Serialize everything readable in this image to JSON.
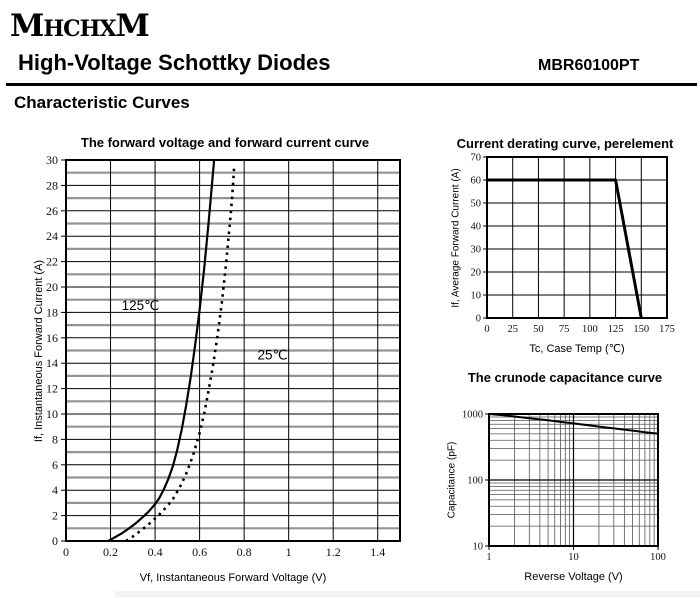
{
  "header": {
    "logo": "MHCHXM",
    "title": "High-Voltage Schottky Diodes",
    "part_number": "MBR60100PT",
    "section_title": "Characteristic Curves"
  },
  "colors": {
    "text": "#000000",
    "line": "#000000",
    "grid_major": "#000000",
    "grid_minor": "#949494",
    "log_grid_minor": "#555555",
    "footer_bar": "#f3f3f3"
  },
  "chart_data": [
    {
      "id": "forward-voltage",
      "type": "line",
      "title": "The forward voltage and forward current curve",
      "xlabel": "Vf, Instantaneous Forward Voltage (V)",
      "ylabel": "If, Instantaneous Forward Current (A)",
      "xlim": [
        0,
        1.5
      ],
      "ylim": [
        0,
        30
      ],
      "x_scale": "linear",
      "y_scale": "linear",
      "grid": "on",
      "x_ticks": [
        0,
        0.2,
        0.4,
        0.6,
        0.8,
        1,
        1.2,
        1.4
      ],
      "x_tick_labels": [
        "0",
        "0.2",
        "0.4",
        "0.6",
        "0.8",
        "1",
        "1.2",
        "1.4"
      ],
      "y_ticks": [
        0,
        2,
        4,
        6,
        8,
        10,
        12,
        14,
        16,
        18,
        20,
        22,
        24,
        26,
        28,
        30
      ],
      "y_grid_step": 1,
      "series": [
        {
          "name": "125℃",
          "style": "solid",
          "label_at": [
            0.25,
            18.2
          ],
          "points": [
            [
              0.19,
              0
            ],
            [
              0.22,
              0.3
            ],
            [
              0.25,
              0.6
            ],
            [
              0.28,
              0.95
            ],
            [
              0.31,
              1.35
            ],
            [
              0.34,
              1.8
            ],
            [
              0.37,
              2.3
            ],
            [
              0.4,
              2.9
            ],
            [
              0.42,
              3.4
            ],
            [
              0.44,
              4.1
            ],
            [
              0.46,
              4.9
            ],
            [
              0.48,
              5.9
            ],
            [
              0.5,
              7.2
            ],
            [
              0.52,
              8.8
            ],
            [
              0.54,
              10.7
            ],
            [
              0.56,
              12.9
            ],
            [
              0.58,
              15.4
            ],
            [
              0.6,
              18.2
            ],
            [
              0.62,
              21.4
            ],
            [
              0.64,
              25.0
            ],
            [
              0.66,
              29.0
            ],
            [
              0.665,
              30
            ]
          ]
        },
        {
          "name": "25℃",
          "style": "dotted",
          "label_at": [
            0.86,
            14.3
          ],
          "points": [
            [
              0.27,
              0
            ],
            [
              0.3,
              0.35
            ],
            [
              0.33,
              0.75
            ],
            [
              0.36,
              1.15
            ],
            [
              0.39,
              1.6
            ],
            [
              0.42,
              2.1
            ],
            [
              0.45,
              2.65
            ],
            [
              0.48,
              3.3
            ],
            [
              0.51,
              4.2
            ],
            [
              0.54,
              5.3
            ],
            [
              0.57,
              6.7
            ],
            [
              0.6,
              8.5
            ],
            [
              0.62,
              10.0
            ],
            [
              0.64,
              11.8
            ],
            [
              0.66,
              13.8
            ],
            [
              0.68,
              16.1
            ],
            [
              0.7,
              18.8
            ],
            [
              0.72,
              22.0
            ],
            [
              0.74,
              25.8
            ],
            [
              0.75,
              28.0
            ],
            [
              0.755,
              29.4
            ]
          ]
        }
      ]
    },
    {
      "id": "current-derating",
      "type": "line",
      "title": "Current derating curve, perelement",
      "xlabel": "Tc, Case Temp (℃)",
      "ylabel": "If, Average Forward Current (A)",
      "xlim": [
        0,
        175
      ],
      "ylim": [
        0,
        70
      ],
      "x_scale": "linear",
      "y_scale": "linear",
      "grid": "on",
      "x_ticks": [
        0,
        25,
        50,
        75,
        100,
        125,
        150,
        175
      ],
      "x_tick_labels": [
        "0",
        "25",
        "50",
        "75",
        "100",
        "125",
        "150",
        "175"
      ],
      "y_ticks": [
        0,
        10,
        20,
        30,
        40,
        50,
        60,
        70
      ],
      "series": [
        {
          "name": "derating",
          "style": "solid",
          "points": [
            [
              0,
              60
            ],
            [
              125,
              60
            ],
            [
              150,
              0
            ]
          ]
        }
      ]
    },
    {
      "id": "crunode-capacitance",
      "type": "line",
      "title": "The crunode capacitance curve",
      "xlabel": "Reverse Voltage (V)",
      "ylabel": "Capacitance (pF)",
      "xlim": [
        1,
        100
      ],
      "ylim": [
        10,
        1000
      ],
      "x_scale": "log",
      "y_scale": "log",
      "grid": "on",
      "x_ticks": [
        1,
        10,
        100
      ],
      "x_tick_labels": [
        "1",
        "10",
        "100"
      ],
      "y_ticks": [
        10,
        100,
        1000
      ],
      "y_tick_labels": [
        "10",
        "100",
        "1000"
      ],
      "series": [
        {
          "name": "capacitance",
          "style": "solid",
          "points": [
            [
              1,
              1000
            ],
            [
              1.5,
              955
            ],
            [
              2,
              915
            ],
            [
              3,
              865
            ],
            [
              5,
              805
            ],
            [
              7,
              760
            ],
            [
              10,
              720
            ],
            [
              15,
              675
            ],
            [
              20,
              645
            ],
            [
              30,
              605
            ],
            [
              50,
              560
            ],
            [
              70,
              530
            ],
            [
              100,
              505
            ]
          ]
        }
      ]
    }
  ]
}
